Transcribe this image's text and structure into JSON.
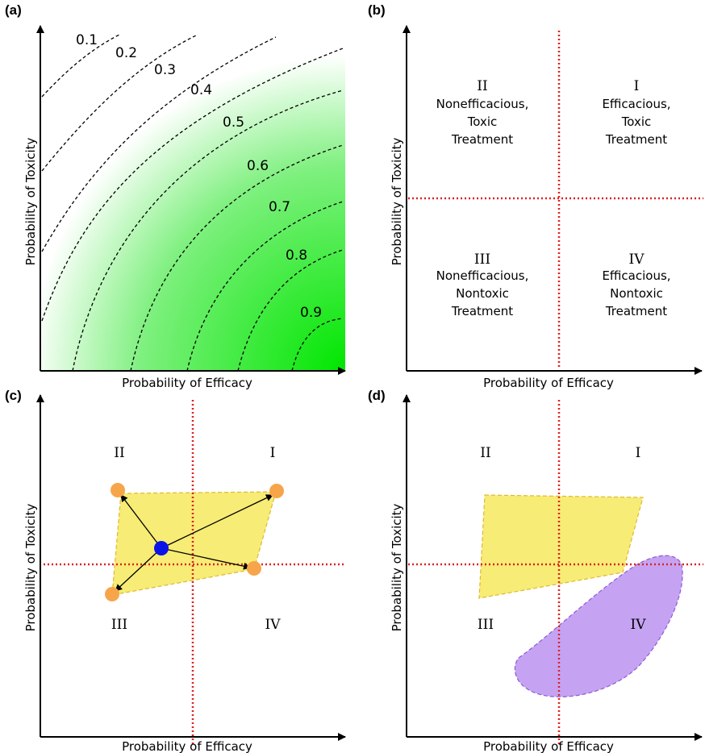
{
  "panels": {
    "a": {
      "letter": "(a)",
      "xlabel": "Probability of Efficacy",
      "ylabel": "Probability of Toxicity",
      "contour_labels": [
        "0.1",
        "0.2",
        "0.3",
        "0.4",
        "0.5",
        "0.6",
        "0.7",
        "0.8",
        "0.9"
      ],
      "gradient_color": "#00e600"
    },
    "b": {
      "letter": "(b)",
      "xlabel": "Probability of Efficacy",
      "ylabel": "Probability of Toxicity",
      "quadrants": {
        "I": {
          "numeral": "I",
          "line1": "Efficacious,",
          "line2": "Toxic",
          "line3": "Treatment"
        },
        "II": {
          "numeral": "II",
          "line1": "Nonefficacious,",
          "line2": "Toxic",
          "line3": "Treatment"
        },
        "III": {
          "numeral": "III",
          "line1": "Nonefficacious,",
          "line2": "Nontoxic",
          "line3": "Treatment"
        },
        "IV": {
          "numeral": "IV",
          "line1": "Efficacious,",
          "line2": "Nontoxic",
          "line3": "Treatment"
        }
      },
      "divider_color": "#e02020"
    },
    "c": {
      "letter": "(c)",
      "xlabel": "Probability of Efficacy",
      "ylabel": "Probability of Toxicity",
      "numerals": {
        "I": "I",
        "II": "II",
        "III": "III",
        "IV": "IV"
      },
      "region_color": "#f7ec75",
      "point_color": "#f7a54a",
      "center_color": "#0a14e6"
    },
    "d": {
      "letter": "(d)",
      "xlabel": "Probability of Efficacy",
      "ylabel": "Probability of Toxicity",
      "numerals": {
        "I": "I",
        "II": "II",
        "III": "III",
        "IV": "IV"
      },
      "region_color": "#f7ec75",
      "second_region_color": "#c5a3f2"
    }
  }
}
